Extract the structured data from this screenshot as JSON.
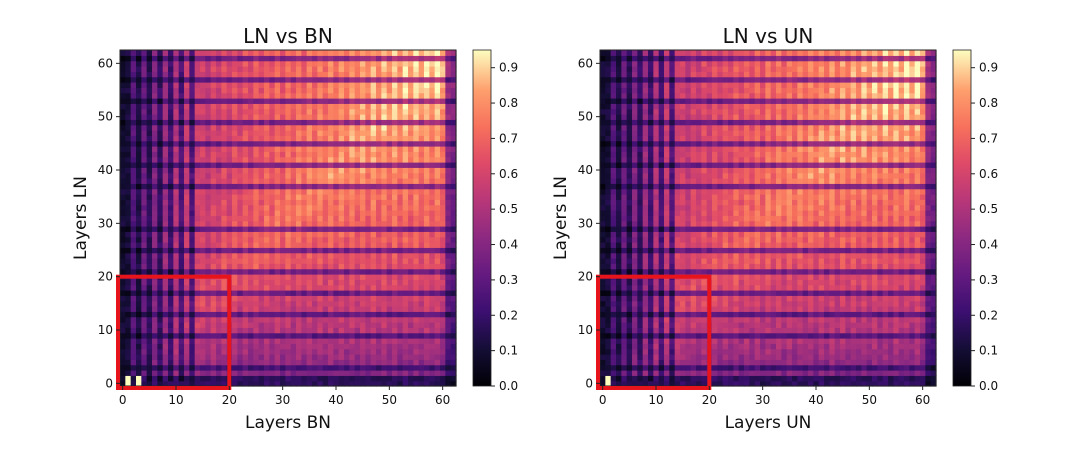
{
  "chart_data": [
    {
      "type": "heatmap",
      "title": "LN vs BN",
      "xlabel": "Layers BN",
      "ylabel": "Layers LN",
      "n_rows": 63,
      "n_cols": 63,
      "xlim": [
        0,
        62
      ],
      "ylim": [
        0,
        62
      ],
      "x_ticks": [
        0,
        10,
        20,
        30,
        40,
        50,
        60
      ],
      "y_ticks": [
        0,
        10,
        20,
        30,
        40,
        50,
        60
      ],
      "colorbar": {
        "colormap": "magma",
        "range": [
          0.0,
          0.95
        ],
        "ticks": [
          "0.0",
          "0.1",
          "0.2",
          "0.3",
          "0.4",
          "0.5",
          "0.6",
          "0.7",
          "0.8",
          "0.9"
        ]
      },
      "highlight_box": {
        "x_range": [
          0,
          20
        ],
        "y_range": [
          0,
          20
        ],
        "color": "#e8141c"
      },
      "low_similarity_rows": [
        1,
        3,
        9,
        13,
        17,
        21,
        25,
        29,
        37,
        41,
        45,
        49,
        53,
        57,
        61
      ],
      "low_similarity_cols": [
        0,
        1,
        3,
        5,
        7,
        9,
        11,
        13
      ],
      "peak_similarity": 0.95
    },
    {
      "type": "heatmap",
      "title": "LN vs UN",
      "xlabel": "Layers UN",
      "ylabel": "Layers LN",
      "n_rows": 63,
      "n_cols": 63,
      "xlim": [
        0,
        62
      ],
      "ylim": [
        0,
        62
      ],
      "x_ticks": [
        0,
        10,
        20,
        30,
        40,
        50,
        60
      ],
      "y_ticks": [
        0,
        10,
        20,
        30,
        40,
        50,
        60
      ],
      "colorbar": {
        "colormap": "magma",
        "range": [
          0.0,
          0.95
        ],
        "ticks": [
          "0.0",
          "0.1",
          "0.2",
          "0.3",
          "0.4",
          "0.5",
          "0.6",
          "0.7",
          "0.8",
          "0.9"
        ]
      },
      "highlight_box": {
        "x_range": [
          0,
          20
        ],
        "y_range": [
          0,
          20
        ],
        "color": "#e8141c"
      },
      "low_similarity_rows": [
        1,
        3,
        9,
        13,
        17,
        21,
        25,
        29,
        37,
        41,
        45,
        49,
        53,
        57,
        61
      ],
      "low_similarity_cols": [
        0,
        1,
        3,
        5,
        7,
        9,
        11,
        13
      ],
      "peak_similarity": 0.95
    }
  ]
}
